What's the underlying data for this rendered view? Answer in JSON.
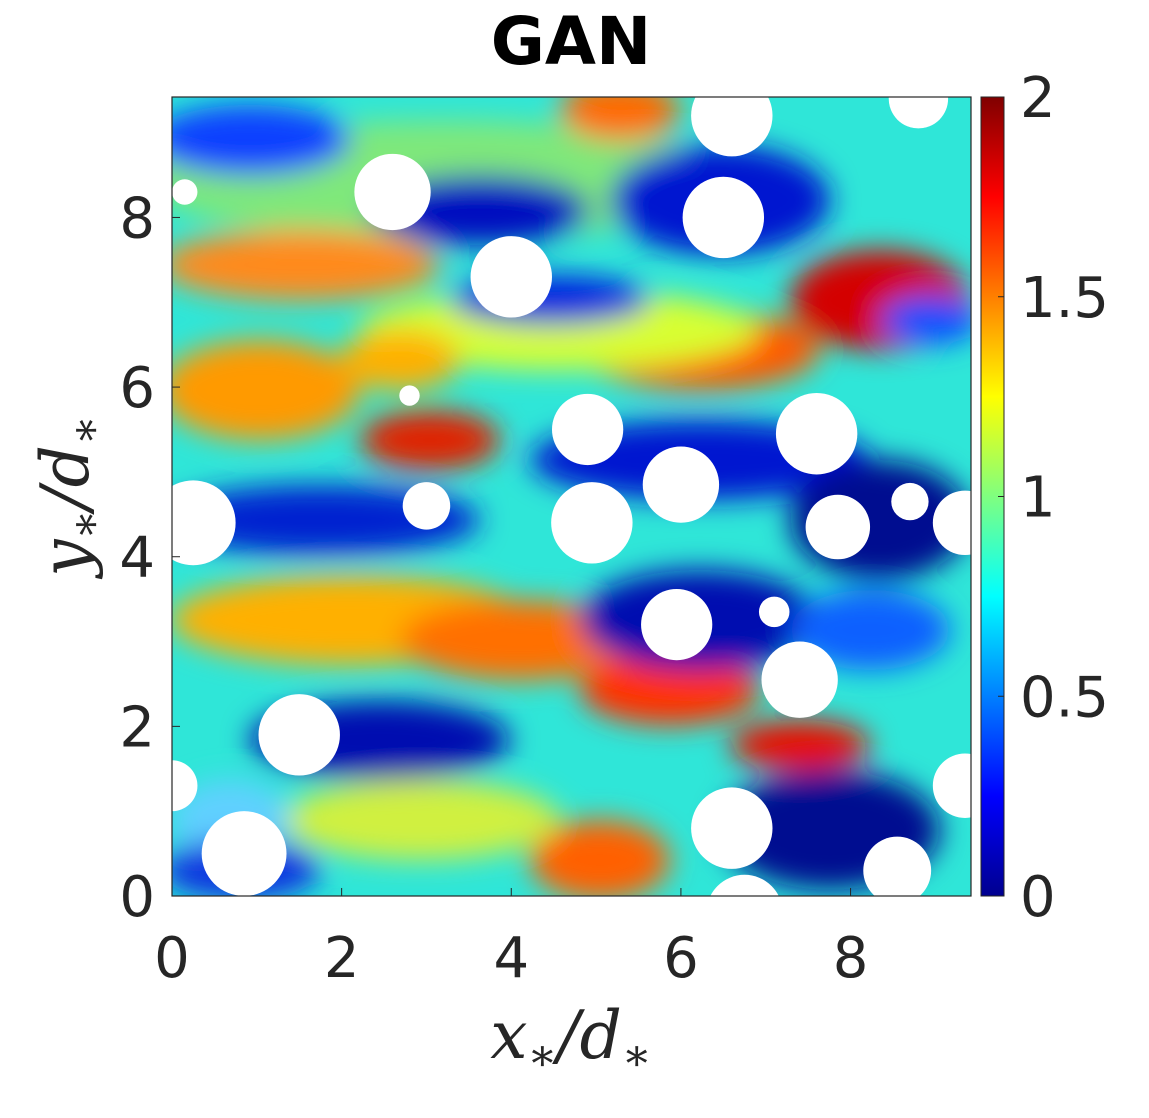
{
  "chart_data": {
    "type": "heatmap",
    "title": "GAN",
    "xlabel": {
      "var": "x",
      "sub": "∗",
      "sep": "/",
      "den": "d",
      "den_sub": "∗"
    },
    "ylabel": {
      "var": "y",
      "sub": "∗",
      "sep": "/",
      "den": "d",
      "den_sub": "∗"
    },
    "xlim": [
      0,
      9.42
    ],
    "ylim": [
      0,
      9.42
    ],
    "xticks": [
      0,
      2,
      4,
      6,
      8
    ],
    "yticks": [
      0,
      2,
      4,
      6,
      8
    ],
    "colorbar": {
      "colormap": "jet",
      "range": [
        0,
        2
      ],
      "ticks": [
        0,
        0.5,
        1,
        1.5,
        2
      ],
      "tick_labels": [
        "0",
        "0.5",
        "1",
        "1.5",
        "2"
      ]
    },
    "obstacles": [
      {
        "x": 2.6,
        "y": 8.3,
        "r": 0.45
      },
      {
        "x": 0.15,
        "y": 8.3,
        "r": 0.15
      },
      {
        "x": 4.0,
        "y": 7.3,
        "r": 0.48
      },
      {
        "x": 6.5,
        "y": 8.0,
        "r": 0.48
      },
      {
        "x": 6.6,
        "y": 9.2,
        "r": 0.48
      },
      {
        "x": 8.8,
        "y": 9.4,
        "r": 0.35
      },
      {
        "x": 2.8,
        "y": 5.9,
        "r": 0.12
      },
      {
        "x": 4.9,
        "y": 5.5,
        "r": 0.42
      },
      {
        "x": 7.6,
        "y": 5.45,
        "r": 0.48
      },
      {
        "x": 6.0,
        "y": 4.85,
        "r": 0.45
      },
      {
        "x": 0.25,
        "y": 4.4,
        "r": 0.5
      },
      {
        "x": 3.0,
        "y": 4.6,
        "r": 0.28
      },
      {
        "x": 4.95,
        "y": 4.4,
        "r": 0.48
      },
      {
        "x": 7.85,
        "y": 4.35,
        "r": 0.38
      },
      {
        "x": 8.7,
        "y": 4.65,
        "r": 0.22
      },
      {
        "x": 9.35,
        "y": 4.4,
        "r": 0.38
      },
      {
        "x": 5.95,
        "y": 3.2,
        "r": 0.42
      },
      {
        "x": 7.1,
        "y": 3.35,
        "r": 0.18
      },
      {
        "x": 7.4,
        "y": 2.55,
        "r": 0.45
      },
      {
        "x": 1.5,
        "y": 1.9,
        "r": 0.48
      },
      {
        "x": 0.0,
        "y": 1.3,
        "r": 0.3
      },
      {
        "x": 9.35,
        "y": 1.3,
        "r": 0.38
      },
      {
        "x": 6.6,
        "y": 0.8,
        "r": 0.48
      },
      {
        "x": 0.85,
        "y": 0.5,
        "r": 0.5
      },
      {
        "x": 8.55,
        "y": 0.3,
        "r": 0.4
      },
      {
        "x": 6.75,
        "y": -0.2,
        "r": 0.45
      }
    ]
  }
}
